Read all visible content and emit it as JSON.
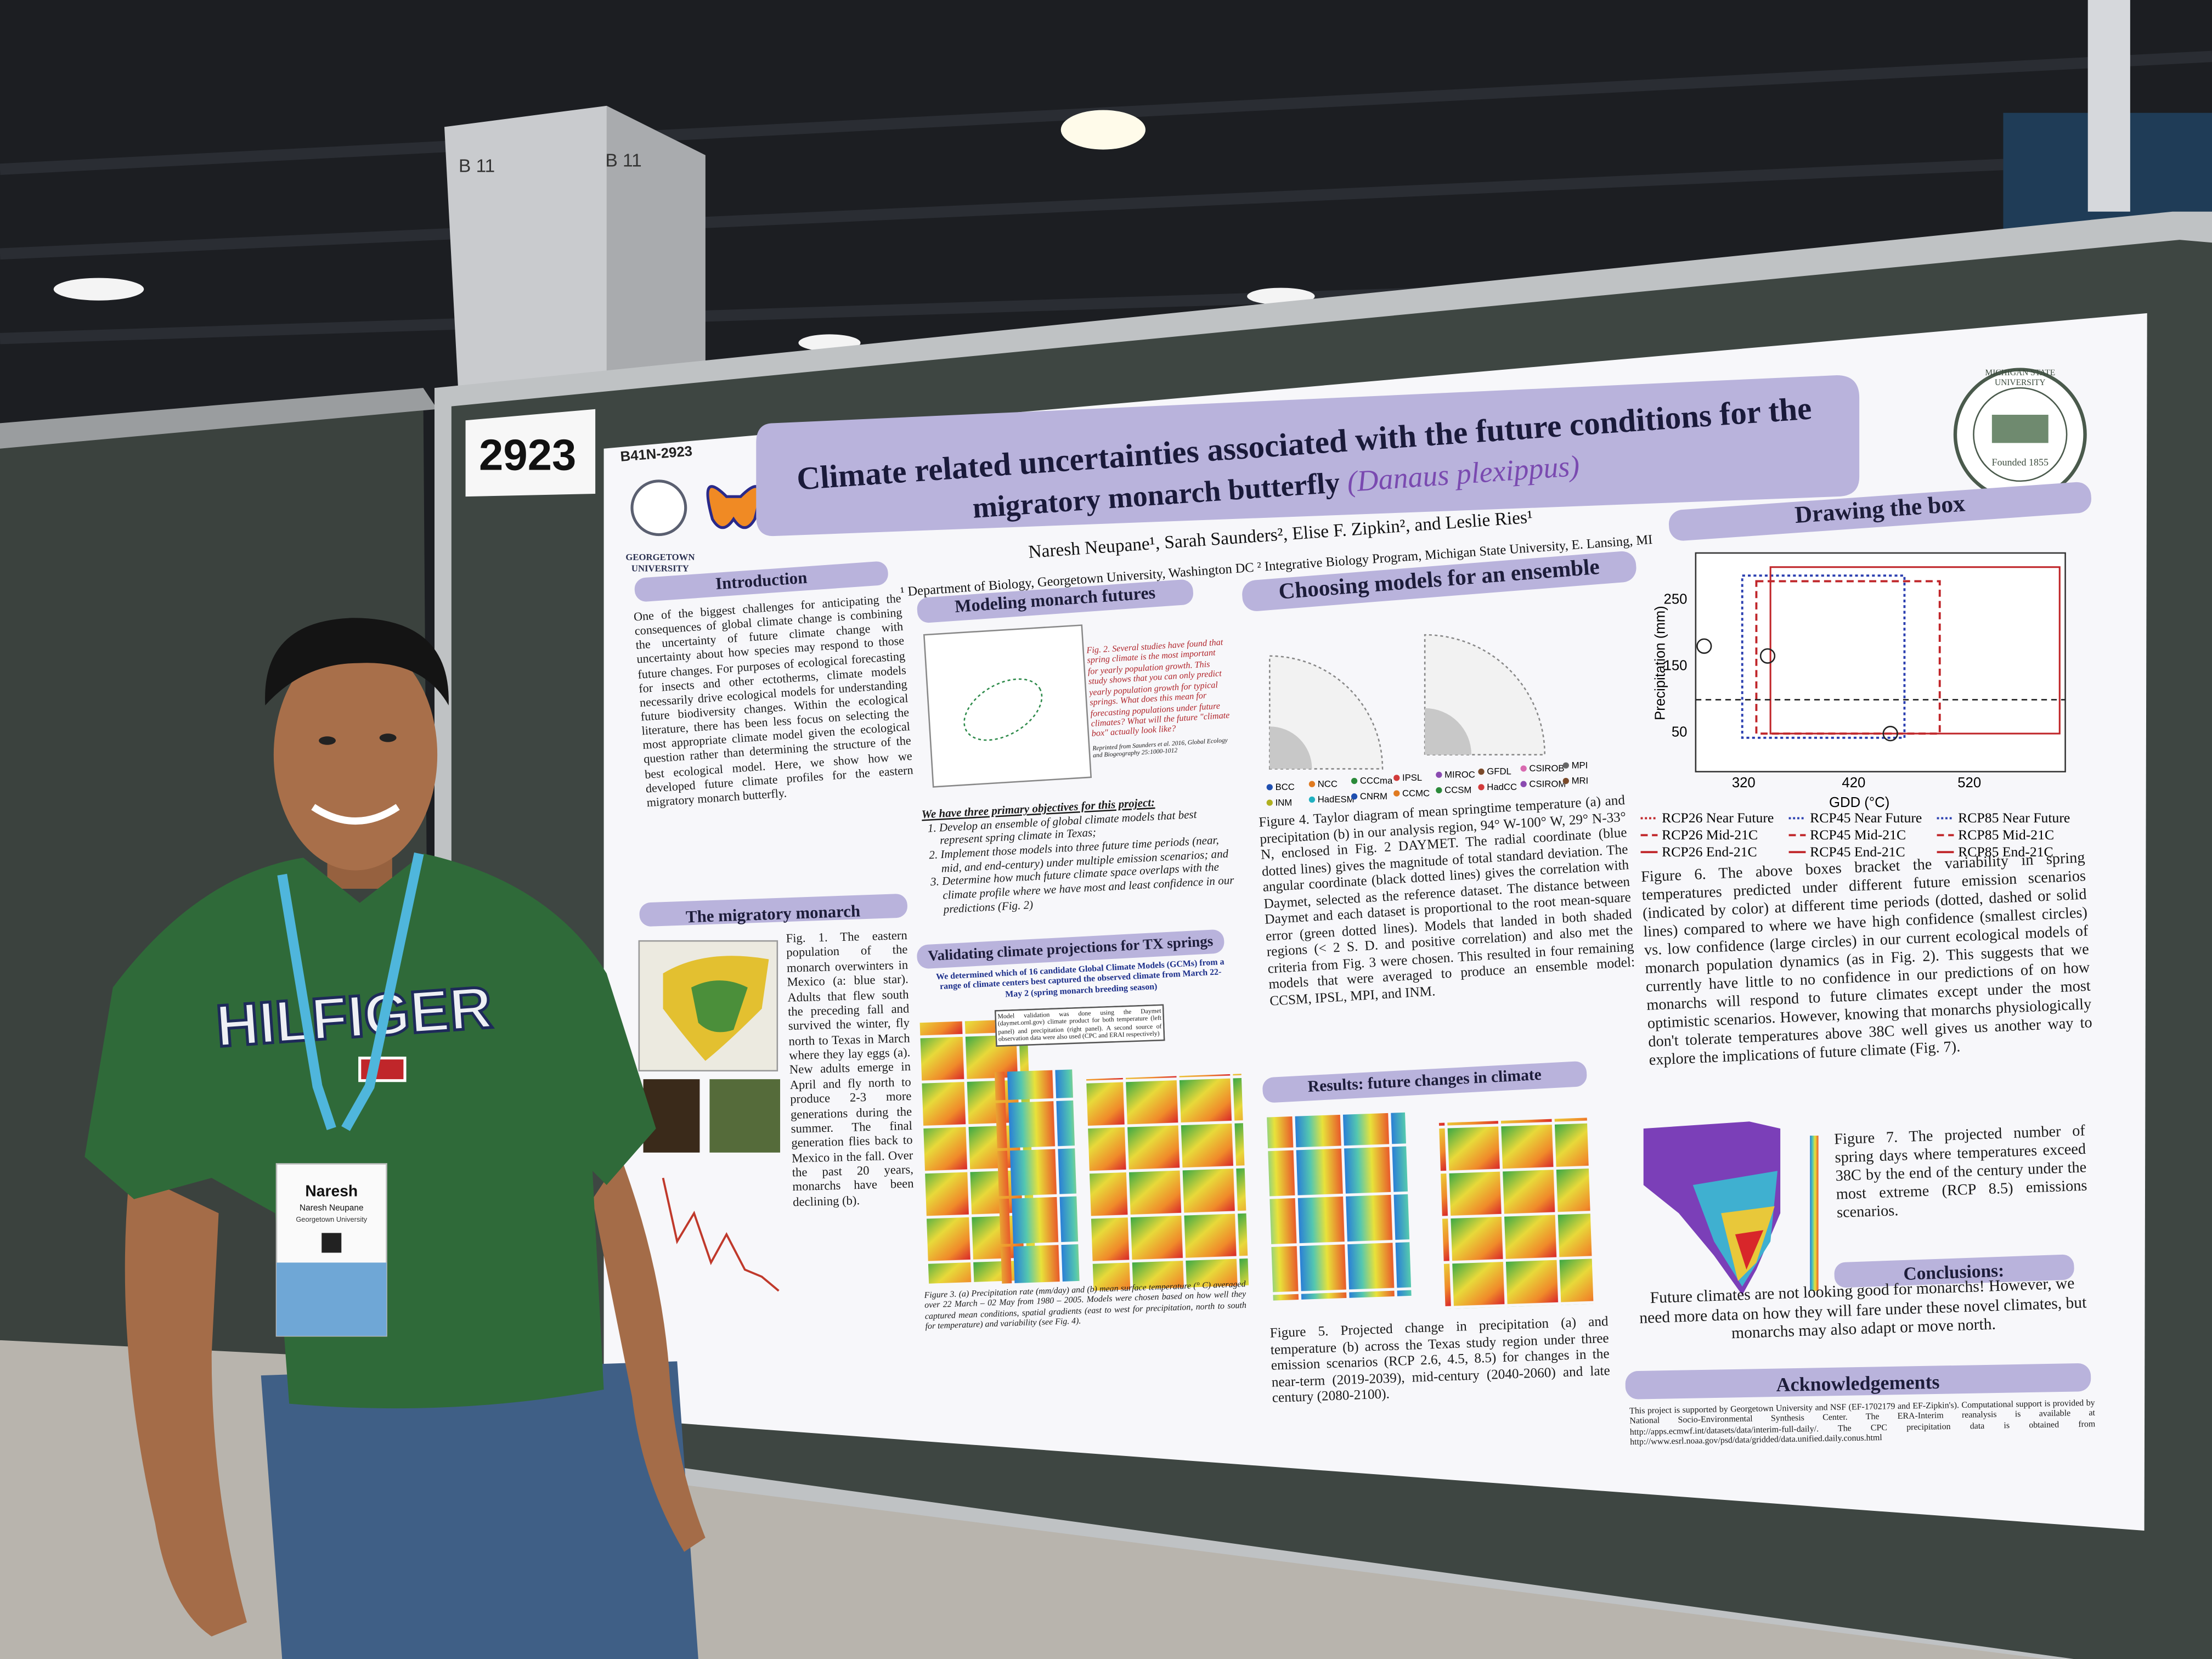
{
  "booth_number": "2923",
  "pillar_signs": [
    "B 11",
    "B 11"
  ],
  "poster": {
    "id": "B41N-2923",
    "logos": {
      "left": "GEORGETOWN UNIVERSITY",
      "right": "MICHIGAN STATE UNIVERSITY",
      "right_founded": "Founded 1855"
    },
    "title": "Climate related uncertainties associated with the future conditions for the",
    "title_line2": "migratory monarch butterfly",
    "title_species": "(Danaus plexippus)",
    "authors": "Naresh Neupane¹, Sarah Saunders², Elise F. Zipkin², and Leslie Ries¹",
    "affiliations": "¹ Department of Biology, Georgetown University, Washington DC ² Integrative Biology Program, Michigan State University, E. Lansing, MI",
    "introduction": {
      "heading": "Introduction",
      "body": "One of the biggest challenges for anticipating the consequences of global climate change is combining the uncertainty of future climate change with uncertainty about how species may respond to those future changes. For purposes of ecological forecasting for insects and other ectotherms, climate models necessarily drive ecological models for understanding future biodiversity changes. Within the ecological literature, there has been less focus on selecting the most appropriate climate model given the ecological question rather than determining the structure of the best ecological model. Here, we show how we developed future climate profiles for the eastern migratory monarch butterfly."
    },
    "migratory_monarch": {
      "heading": "The migratory monarch",
      "caption": "Fig. 1. The eastern population of the monarch overwinters in Mexico (a: blue star). Adults that flew south the preceding fall and survived the winter, fly north to Texas in March where they lay eggs (a). New adults emerge in April and fly north to produce 2-3 more generations during the summer. The final generation flies back to Mexico in the fall. Over the past 20 years, monarchs have been declining (b)."
    },
    "modeling": {
      "heading": "Modeling monarch futures",
      "fig2_caption": "Fig. 2. Several studies have found that spring climate is the most important for yearly population growth. This study shows that you can only predict yearly population growth for typical springs. What does this mean for forecasting populations under future climates? What will the future \"climate box\" actually look like?",
      "fig2_source": "Reprinted from Saunders et al. 2016, Global Ecology and Biogeography 25:1000-1012",
      "objectives_intro": "We have three primary objectives for this project:",
      "objectives": [
        "Develop an ensemble of global climate models that best represent spring climate in Texas;",
        "Implement those models into three future time periods (near, mid, and end-century) under multiple emission scenarios; and",
        "Determine how much future climate space overlaps with the climate profile where we have most and least confidence in our predictions (Fig. 2)"
      ]
    },
    "validating": {
      "heading": "Validating climate projections for TX springs",
      "body": "We determined which of 16 candidate Global Climate Models (GCMs) from a range of climate centers best captured the observed climate from March 22-May 2 (spring monarch breeding season)",
      "note": "Model validation was done using the Daymet (daymet.ornl.gov) climate product for both temperature (left panel) and precipitation (right panel). A second source of observation data were also used (CPC and ERAI respectively)",
      "caption": "Figure 3. (a) Precipitation rate (mm/day) and (b) mean surface temperature (° C) averaged over 22 March – 02 May from 1980 – 2005. Models were chosen based on how well they captured mean conditions, spatial gradients (east to west for precipitation, north to south for temperature) and variability (see Fig. 4)."
    },
    "choosing": {
      "heading": "Choosing models for an ensemble",
      "models": [
        "BCC",
        "NCC",
        "CCCma",
        "IPSL",
        "MIROC",
        "GFDL",
        "CSIROB",
        "MPI",
        "INM",
        "HadESM",
        "CNRM",
        "CCMC",
        "CCSM",
        "HadCC",
        "CSIROM",
        "MRI"
      ],
      "caption": "Figure 4. Taylor diagram of mean springtime temperature (a) and precipitation (b) in our analysis region, 94° W-100° W, 29° N-33° N, enclosed in Fig. 2 DAYMET. The radial coordinate (blue dotted lines) gives the magnitude of total standard deviation. The angular coordinate (black dotted lines) gives the correlation with Daymet, selected as the reference dataset. The distance between Daymet and each dataset is proportional to the root mean-square error (green dotted lines). Models that landed in both shaded regions (< 2 S. D. and positive correlation) and also met the criteria from Fig. 3 were chosen. This resulted in four remaining models that were averaged to produce an ensemble model: CCSM, IPSL, MPI, and INM."
    },
    "results": {
      "heading": "Results: future changes in climate",
      "caption": "Figure 5. Projected change in precipitation (a) and temperature (b) across the Texas study region under three emission scenarios (RCP 2.6, 4.5, 8.5) for changes in the near-term (2019-2039), mid-century (2040-2060) and late century (2080-2100)."
    },
    "drawing_box": {
      "heading": "Drawing the box",
      "y_label": "Precipitation (mm)",
      "x_label": "GDD (°C)",
      "y_ticks": [
        "250",
        "150",
        "50"
      ],
      "x_ticks": [
        "320",
        "420",
        "520"
      ],
      "legend": [
        "RCP26 Near Future",
        "RCP45 Near Future",
        "RCP85 Near Future",
        "RCP26 Mid-21C",
        "RCP45 Mid-21C",
        "RCP85 Mid-21C",
        "RCP26 End-21C",
        "RCP45 End-21C",
        "RCP85 End-21C"
      ],
      "caption": "Figure 6. The above boxes bracket the variability in spring temperatures predicted under different future emission scenarios (indicated by color) at different time periods (dotted, dashed or solid lines) compared to where we have high confidence (smallest circles) vs. low confidence (large circles) in our current ecological models of monarch population dynamics (as in Fig. 2). This suggests that we currently have little to no confidence in our predictions of on how monarchs will respond to future climates except under the most optimistic scenarios. However, knowing that monarchs physiologically don't tolerate temperatures above 38C well gives us another way to explore the implications of future climate (Fig. 7).",
      "fig7_caption": "Figure 7. The projected number of spring days where temperatures exceed 38C by the end of the century under the most extreme (RCP 8.5) emissions scenarios."
    },
    "conclusions": {
      "heading": "Conclusions:",
      "body": "Future climates are not looking good for monarchs! However, we need more data on how they will fare under these novel climates, but monarchs may also adapt or move north."
    },
    "acknowledgements": {
      "heading": "Acknowledgements",
      "body": "This project is supported by Georgetown University and NSF (EF-1702179 and EF-Zipkin's). Computational support is provided by National Socio-Environmental Synthesis Center. The ERA-Interim reanalysis is available at http://apps.ecmwf.int/datasets/data/interim-full-daily/. The CPC precipitation data is obtained from http://www.esrl.noaa.gov/psd/data/gridded/data.unified.daily.conus.html"
    }
  },
  "shirt_text": "HILFIGER",
  "badge": {
    "name": "Naresh",
    "full_name": "Naresh Neupane",
    "organization": "Georgetown University"
  }
}
